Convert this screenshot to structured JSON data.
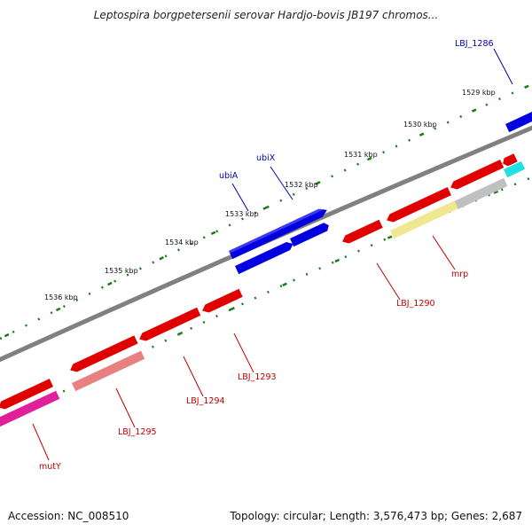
{
  "title": "Leptospira borgpetersenii serovar Hardjo-bovis JB197 chromos...",
  "footer": {
    "accession": "Accession: NC_008510",
    "stats": "Topology: circular; Length: 3,576,473 bp; Genes: 2,687"
  },
  "ticks": [
    "1529 kbp",
    "1530 kbp",
    "1531 kbp",
    "1532 kbp",
    "1533 kbp",
    "1534 kbp",
    "1535 kbp",
    "1536 kbp"
  ],
  "gene_labels": [
    "LBJ_1286",
    "ubiX",
    "ubiA",
    "LBJ_1290",
    "mrp",
    "LBJ_1293",
    "LBJ_1294",
    "LBJ_1295",
    "mutY"
  ],
  "colors": {
    "backbone": "#808080",
    "forward_gene": "#0000e0",
    "reverse_gene": "#e00000",
    "light_red_gene": "#e88080",
    "pink_gene": "#e0209a",
    "yellow_gene": "#f0e890",
    "gray_gene": "#c0c0c0",
    "cyan_gene": "#20e0e0",
    "forward_label": "#0000b0",
    "reverse_label": "#c00000",
    "tick_dots": "#1a7a1a"
  }
}
